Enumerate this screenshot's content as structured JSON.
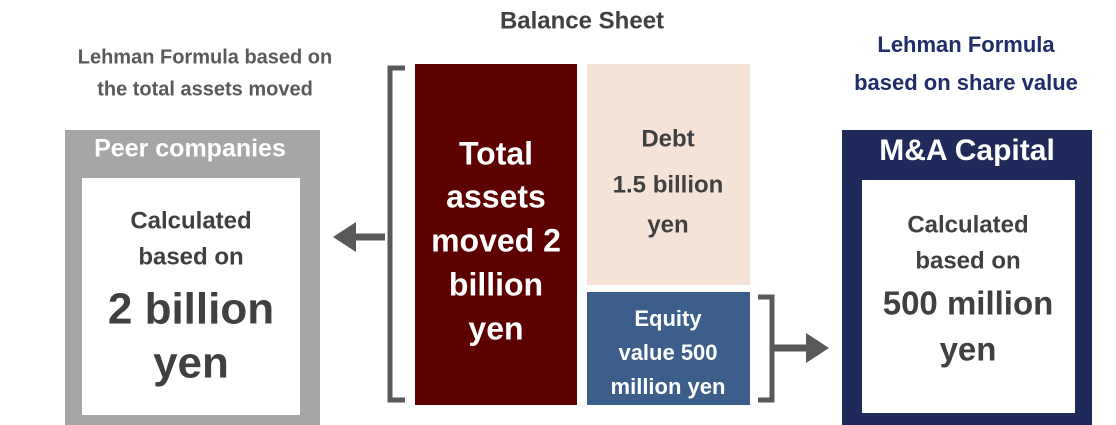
{
  "title": "Balance Sheet",
  "left_label": [
    "Lehman Formula based on",
    "the total assets moved"
  ],
  "right_label": [
    "Lehman Formula",
    "based on share value"
  ],
  "peer_box": {
    "header": "Peer companies",
    "text": [
      "Calculated",
      "based on"
    ],
    "amount": [
      "2 billion",
      "yen"
    ]
  },
  "total_assets": [
    "Total",
    "assets",
    "moved 2",
    "billion",
    "yen"
  ],
  "debt": [
    "Debt",
    "1.5 billion",
    "yen"
  ],
  "equity": [
    "Equity",
    "value 500",
    "million yen"
  ],
  "ma_box": {
    "header": "M&A Capital",
    "text": [
      "Calculated",
      "based on"
    ],
    "amount": [
      "500 million",
      "yen"
    ]
  }
}
